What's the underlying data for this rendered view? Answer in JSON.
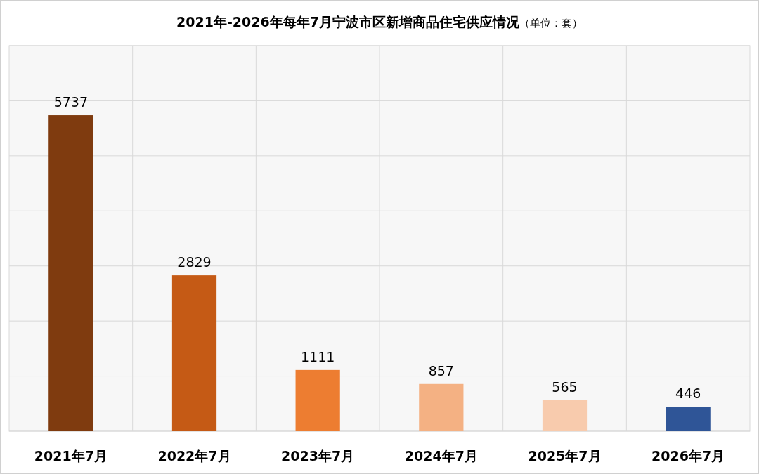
{
  "chart_data": {
    "type": "bar",
    "title": "2021年-2026年每年7月宁波市区新增商品住宅供应情况",
    "subtitle": "（单位：套）",
    "categories": [
      "2021年7月",
      "2022年7月",
      "2023年7月",
      "2024年7月",
      "2025年7月",
      "2026年7月"
    ],
    "values": [
      5737,
      2829,
      1111,
      857,
      565,
      446
    ],
    "colors": [
      "#7f3b0f",
      "#c55a15",
      "#ed7d31",
      "#f4b183",
      "#f8cbad",
      "#2f5597"
    ],
    "ylim": [
      0,
      7000
    ],
    "yticks": [
      {
        "value": 0,
        "label": null
      },
      {
        "value": 1000,
        "label": null
      },
      {
        "value": 2000,
        "label": null
      },
      {
        "value": 3000,
        "label": null
      },
      {
        "value": 4000,
        "label": null
      },
      {
        "value": 5000,
        "label": null
      },
      {
        "value": 6000,
        "label": null
      },
      {
        "value": 7000,
        "label": null
      }
    ],
    "grid": true,
    "data_labels": true,
    "tick_labels": "x"
  }
}
